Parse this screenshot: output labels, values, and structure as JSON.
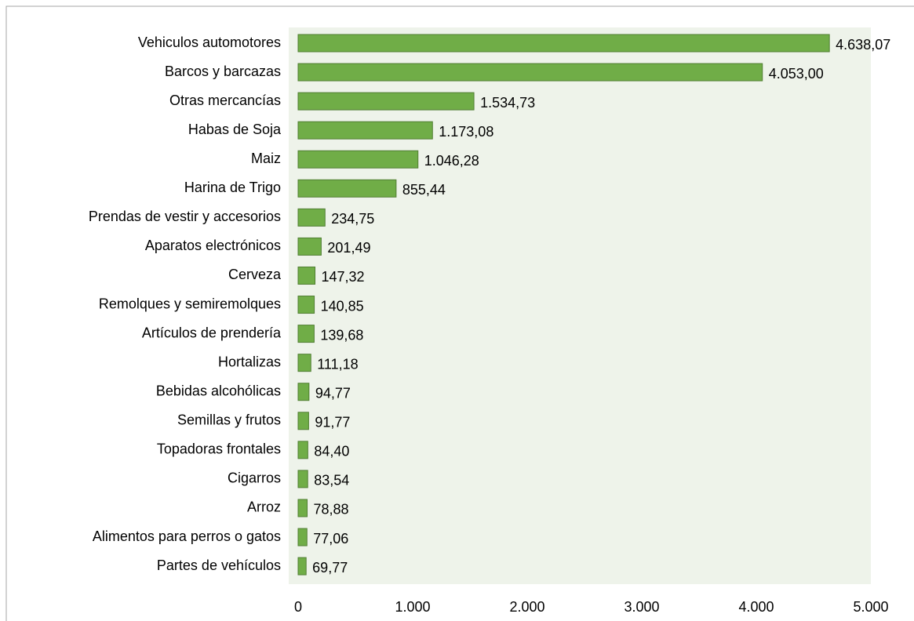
{
  "chart_data": {
    "type": "bar",
    "orientation": "horizontal",
    "categories": [
      "Vehiculos automotores",
      "Barcos y barcazas",
      "Otras mercancías",
      "Habas de Soja",
      "Maiz",
      "Harina de Trigo",
      "Prendas de vestir y accesorios",
      "Aparatos electrónicos",
      "Cerveza",
      "Remolques y semiremolques",
      "Artículos de prendería",
      "Hortalizas",
      "Bebidas alcohólicas",
      "Semillas y frutos",
      "Topadoras frontales",
      "Cigarros",
      "Arroz",
      "Alimentos para perros o gatos",
      "Partes de vehículos"
    ],
    "values": [
      4638.07,
      4053.0,
      1534.73,
      1173.08,
      1046.28,
      855.44,
      234.75,
      201.49,
      147.32,
      140.85,
      139.68,
      111.18,
      94.77,
      91.77,
      84.4,
      83.54,
      78.88,
      77.06,
      69.77
    ],
    "value_labels": [
      "4.638,07",
      "4.053,00",
      "1.534,73",
      "1.173,08",
      "1.046,28",
      "855,44",
      "234,75",
      "201,49",
      "147,32",
      "140,85",
      "139,68",
      "111,18",
      "94,77",
      "91,77",
      "84,40",
      "83,54",
      "78,88",
      "77,06",
      "69,77"
    ],
    "color": "#70ad47",
    "xlim": [
      0,
      5000
    ],
    "xticks": [
      0,
      {
        "value": 1000,
        "label": "1.000"
      },
      {
        "value": 2000,
        "label": "2.000"
      },
      {
        "value": 3000,
        "label": "3.000"
      },
      {
        "value": 4000,
        "label": "4.000"
      },
      {
        "value": 5000,
        "label": "5.000"
      }
    ],
    "grid": false
  }
}
